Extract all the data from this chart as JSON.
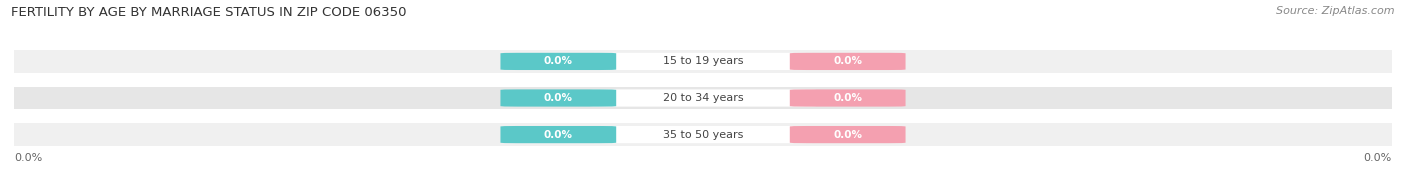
{
  "title": "FERTILITY BY AGE BY MARRIAGE STATUS IN ZIP CODE 06350",
  "source": "Source: ZipAtlas.com",
  "categories": [
    "15 to 19 years",
    "20 to 34 years",
    "35 to 50 years"
  ],
  "married_values": [
    0.0,
    0.0,
    0.0
  ],
  "unmarried_values": [
    0.0,
    0.0,
    0.0
  ],
  "married_color": "#5bc8c8",
  "unmarried_color": "#f4a0b0",
  "bar_bg_light": "#f0f0f0",
  "bar_bg_dark": "#e6e6e6",
  "title_fontsize": 9.5,
  "source_fontsize": 8,
  "label_fontsize": 8,
  "badge_fontsize": 7.5,
  "fig_width": 14.06,
  "fig_height": 1.96,
  "left_label": "0.0%",
  "right_label": "0.0%"
}
